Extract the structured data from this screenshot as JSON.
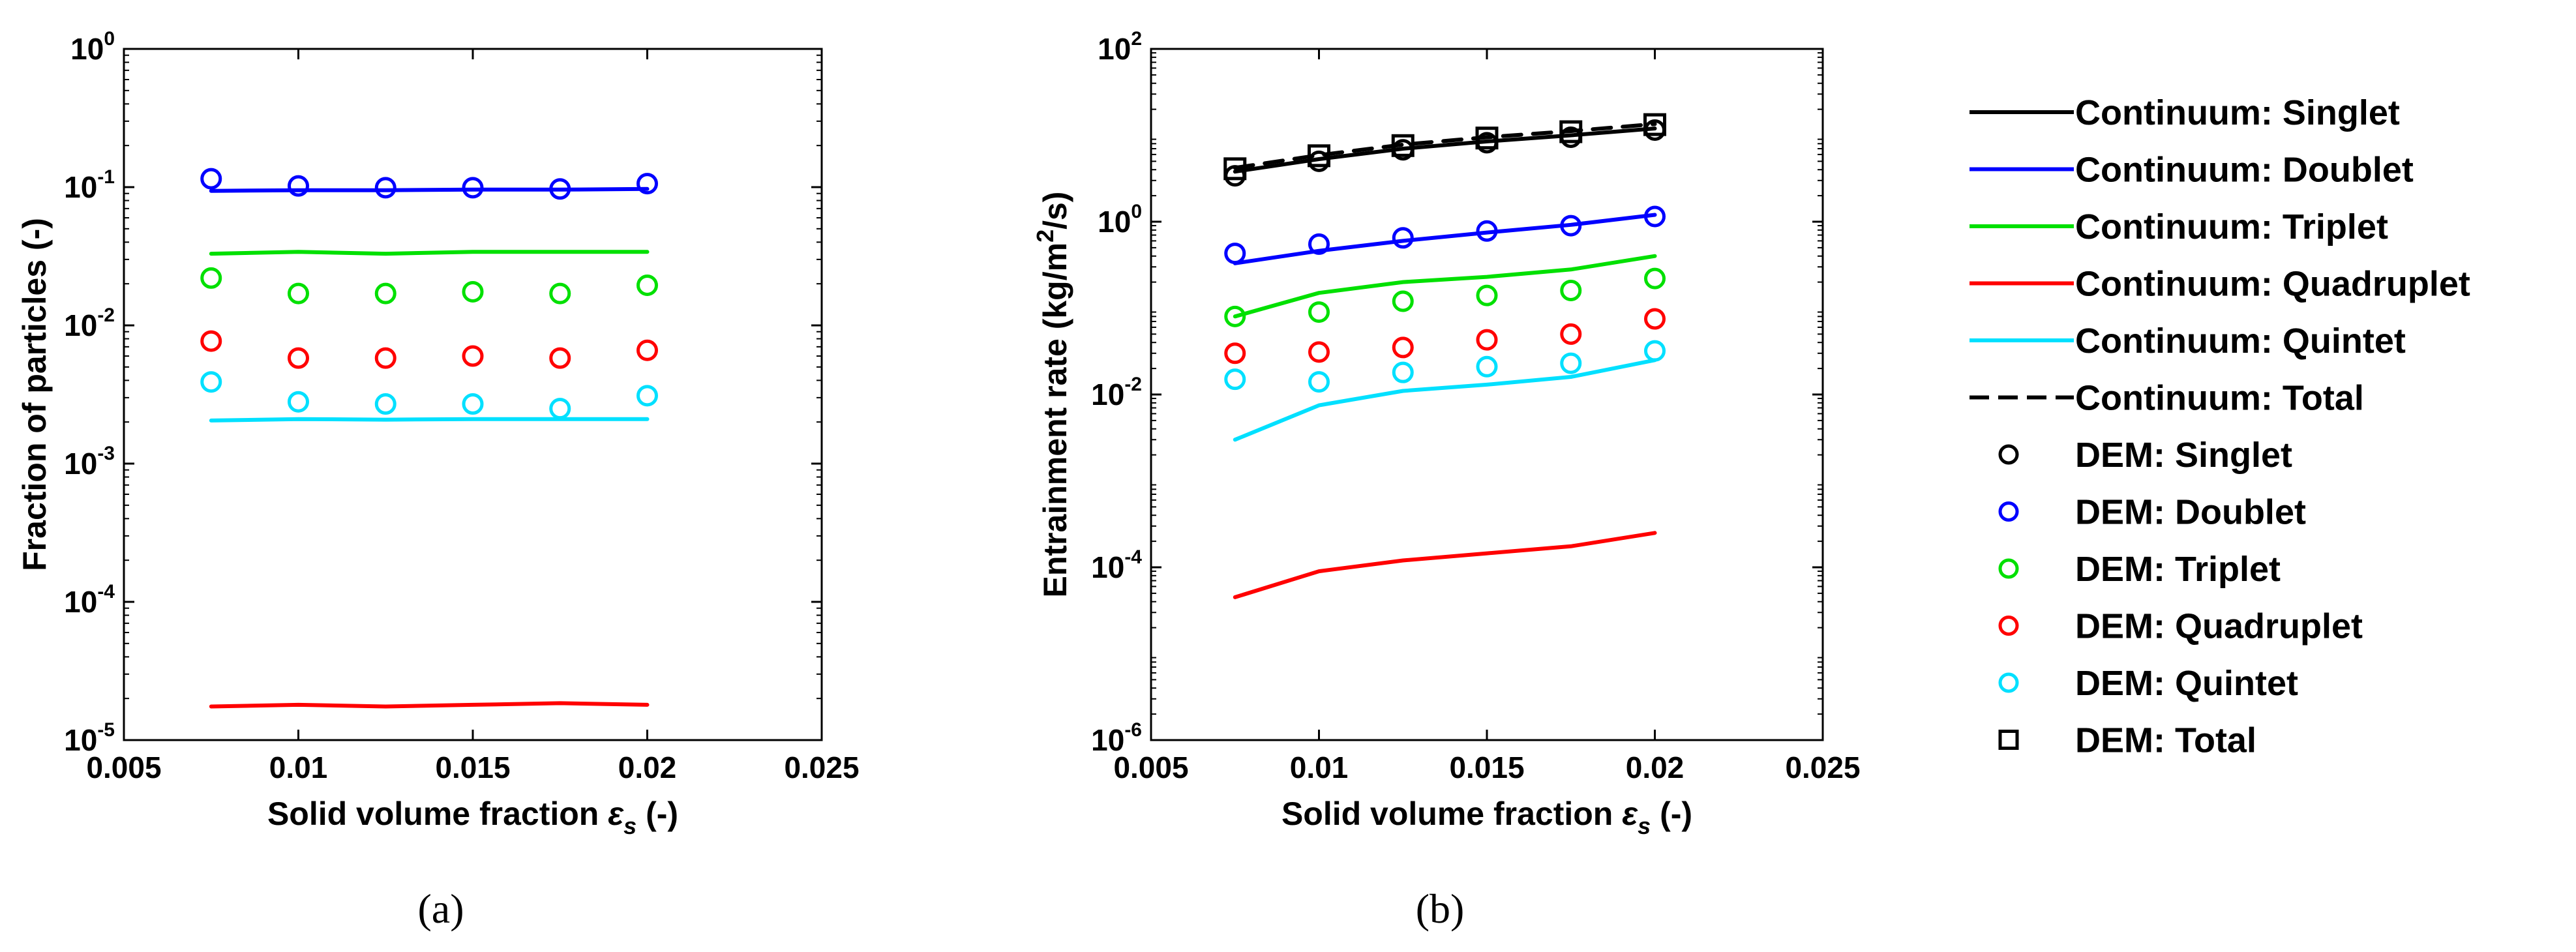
{
  "panel_labels": {
    "a": "(a)",
    "b": "(b)"
  },
  "colors": {
    "Singlet": "#000000",
    "Doublet": "#0000ff",
    "Triplet": "#00e000",
    "Quadruplet": "#ff0000",
    "Quintet": "#00e0ff",
    "Total": "#000000"
  },
  "chart_data": [
    {
      "type": "line",
      "panel": "a",
      "xlabel": "Solid volume fraction ε_s (-)",
      "xlabel_parts": {
        "main": "Solid volume fraction ",
        "symbol": "ε",
        "sub": "s",
        "tail": " (-)"
      },
      "ylabel": "Fraction of particles (-)",
      "xlim": [
        0.005,
        0.025
      ],
      "ylim": [
        1e-05,
        1
      ],
      "yscale": "log",
      "xticks": [
        "0.005",
        "0.01",
        "0.015",
        "0.02",
        "0.025"
      ],
      "yticks": [
        -5,
        -4,
        -3,
        -2,
        -1,
        0
      ],
      "x": [
        0.0075,
        0.01,
        0.0125,
        0.015,
        0.0175,
        0.02
      ],
      "lines": [
        {
          "group": "Doublet",
          "values": [
            0.094,
            0.095,
            0.095,
            0.096,
            0.096,
            0.097
          ]
        },
        {
          "group": "Triplet",
          "values": [
            0.033,
            0.034,
            0.033,
            0.034,
            0.034,
            0.034
          ]
        },
        {
          "group": "Quadruplet",
          "values": [
            1.75e-05,
            1.8e-05,
            1.75e-05,
            1.8e-05,
            1.85e-05,
            1.8e-05
          ]
        },
        {
          "group": "Quintet",
          "values": [
            0.00205,
            0.0021,
            0.00208,
            0.0021,
            0.0021,
            0.0021
          ]
        }
      ],
      "markers": [
        {
          "group": "Doublet",
          "values": [
            0.115,
            0.102,
            0.099,
            0.099,
            0.097,
            0.106
          ]
        },
        {
          "group": "Triplet",
          "values": [
            0.022,
            0.017,
            0.017,
            0.0175,
            0.017,
            0.0195
          ]
        },
        {
          "group": "Quadruplet",
          "values": [
            0.0077,
            0.0058,
            0.0058,
            0.006,
            0.0058,
            0.0066
          ]
        },
        {
          "group": "Quintet",
          "values": [
            0.0039,
            0.0028,
            0.0027,
            0.0027,
            0.0025,
            0.0031
          ]
        }
      ]
    },
    {
      "type": "line",
      "panel": "b",
      "xlabel": "Solid volume fraction ε_s (-)",
      "xlabel_parts": {
        "main": "Solid volume fraction ",
        "symbol": "ε",
        "sub": "s",
        "tail": " (-)"
      },
      "ylabel": "Entrainment rate (kg/m^2/s)",
      "ylabel_parts": {
        "main": "Entrainment rate (kg/m",
        "sup": "2",
        "tail": "/s)"
      },
      "xlim": [
        0.005,
        0.025
      ],
      "ylim": [
        1e-06,
        100
      ],
      "yscale": "log",
      "xticks": [
        "0.005",
        "0.01",
        "0.015",
        "0.02",
        "0.025"
      ],
      "yticks": [
        -6,
        -4,
        -2,
        0,
        2
      ],
      "x": [
        0.0075,
        0.01,
        0.0125,
        0.015,
        0.0175,
        0.02
      ],
      "lines": [
        {
          "group": "Singlet",
          "values": [
            3.8,
            5.3,
            7.0,
            8.5,
            10.0,
            12.0
          ]
        },
        {
          "group": "Doublet",
          "values": [
            0.33,
            0.46,
            0.6,
            0.75,
            0.92,
            1.2
          ]
        },
        {
          "group": "Triplet",
          "values": [
            0.08,
            0.15,
            0.2,
            0.23,
            0.28,
            0.4
          ]
        },
        {
          "group": "Quadruplet",
          "values": [
            4.5e-05,
            9e-05,
            0.00012,
            0.000145,
            0.000175,
            0.00025
          ]
        },
        {
          "group": "Quintet",
          "values": [
            0.003,
            0.0075,
            0.011,
            0.013,
            0.016,
            0.025
          ]
        },
        {
          "group": "Total",
          "dashed": true,
          "values": [
            4.2,
            5.9,
            7.8,
            9.5,
            11.2,
            13.5
          ]
        }
      ],
      "markers": [
        {
          "group": "Singlet",
          "values": [
            3.4,
            5.0,
            6.8,
            8.2,
            9.5,
            11.5
          ]
        },
        {
          "group": "Doublet",
          "values": [
            0.43,
            0.55,
            0.65,
            0.78,
            0.9,
            1.15
          ]
        },
        {
          "group": "Triplet",
          "values": [
            0.08,
            0.09,
            0.12,
            0.14,
            0.16,
            0.22
          ]
        },
        {
          "group": "Quadruplet",
          "values": [
            0.03,
            0.031,
            0.035,
            0.043,
            0.05,
            0.075
          ]
        },
        {
          "group": "Quintet",
          "values": [
            0.015,
            0.014,
            0.018,
            0.021,
            0.023,
            0.032
          ]
        },
        {
          "group": "Total",
          "shape": "square",
          "values": [
            4.1,
            5.8,
            7.6,
            9.3,
            11.0,
            13.3
          ]
        }
      ]
    }
  ],
  "legend": [
    {
      "label": "Continuum: Singlet",
      "group": "Singlet",
      "kind": "line"
    },
    {
      "label": "Continuum: Doublet",
      "group": "Doublet",
      "kind": "line"
    },
    {
      "label": "Continuum: Triplet",
      "group": "Triplet",
      "kind": "line"
    },
    {
      "label": "Continuum: Quadruplet",
      "group": "Quadruplet",
      "kind": "line"
    },
    {
      "label": "Continuum: Quintet",
      "group": "Quintet",
      "kind": "line"
    },
    {
      "label": "Continuum: Total",
      "group": "Total",
      "kind": "dashed"
    },
    {
      "label": "DEM: Singlet",
      "group": "Singlet",
      "kind": "circle"
    },
    {
      "label": "DEM: Doublet",
      "group": "Doublet",
      "kind": "circle"
    },
    {
      "label": "DEM: Triplet",
      "group": "Triplet",
      "kind": "circle"
    },
    {
      "label": "DEM: Quadruplet",
      "group": "Quadruplet",
      "kind": "circle"
    },
    {
      "label": "DEM: Quintet",
      "group": "Quintet",
      "kind": "circle"
    },
    {
      "label": "DEM: Total",
      "group": "Total",
      "kind": "square"
    }
  ]
}
